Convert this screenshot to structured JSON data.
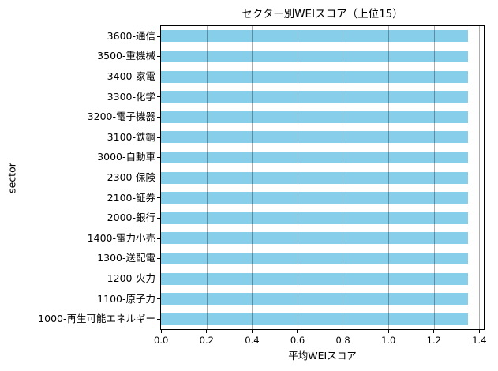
{
  "colors": {
    "bar": "#87CEEB",
    "grid": "#b0b0b0",
    "spine": "#000000",
    "background": "#ffffff",
    "text": "#000000"
  },
  "chart_data": {
    "type": "bar",
    "orientation": "horizontal",
    "title": "セクター別WEIスコア（上位15）",
    "xlabel": "平均WEIスコア",
    "ylabel": "sector",
    "categories": [
      "3600-通信",
      "3500-重機械",
      "3400-家電",
      "3300-化学",
      "3200-電子機器",
      "3100-鉄鋼",
      "3000-自動車",
      "2300-保険",
      "2100-証券",
      "2000-銀行",
      "1400-電力小売",
      "1300-送配電",
      "1200-火力",
      "1100-原子力",
      "1000-再生可能エネルギー"
    ],
    "values": [
      1.35,
      1.35,
      1.35,
      1.35,
      1.35,
      1.35,
      1.35,
      1.35,
      1.35,
      1.35,
      1.35,
      1.35,
      1.35,
      1.35,
      1.35
    ],
    "xlim": [
      0,
      1.42
    ],
    "xticks": [
      0.0,
      0.2,
      0.4,
      0.6,
      0.8,
      1.0,
      1.2,
      1.4
    ],
    "xtick_labels": [
      "0.0",
      "0.2",
      "0.4",
      "0.6",
      "0.8",
      "1.0",
      "1.2",
      "1.4"
    ],
    "grid": "vertical",
    "legend": "none"
  }
}
